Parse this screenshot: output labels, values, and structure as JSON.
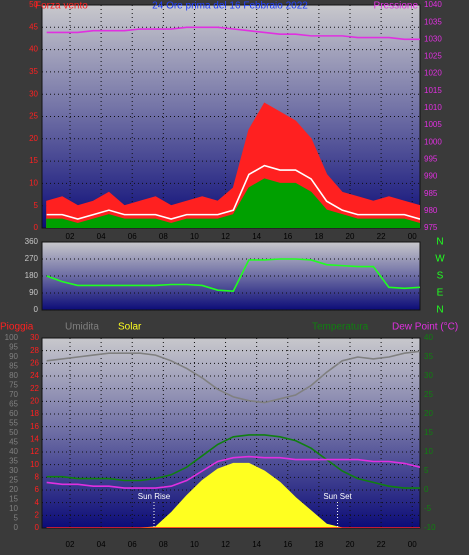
{
  "chart_data": [
    {
      "type": "line",
      "title": "24 Ore prima del 16 Febbraio 2022",
      "x": [
        0.5,
        1.5,
        2.5,
        3.5,
        4.5,
        5.5,
        6.5,
        7.5,
        8.5,
        9.5,
        10.5,
        11.5,
        12.5,
        13.5,
        14.5,
        15.5,
        16.5,
        17.5,
        18.5,
        19.5,
        20.5,
        21.5,
        22.5,
        23.5,
        24.5
      ],
      "xlim": [
        0.2,
        24.5
      ],
      "xticks": [
        {
          "value": 2,
          "label": "02"
        },
        {
          "value": 4,
          "label": "04"
        },
        {
          "value": 6,
          "label": "06"
        },
        {
          "value": 8,
          "label": "08"
        },
        10,
        12,
        14,
        16,
        18,
        20,
        22,
        {
          "value": 24,
          "label": "00"
        }
      ],
      "ylim": [
        0,
        50
      ],
      "yticks": [
        0,
        5,
        10,
        15,
        20,
        25,
        30,
        35,
        40,
        45,
        50
      ],
      "y2lim": [
        975,
        1040
      ],
      "y2ticks": [
        975,
        980,
        985,
        990,
        995,
        1000,
        1005,
        1010,
        1015,
        1020,
        1025,
        1030,
        1035,
        1040
      ],
      "grid": "y",
      "series": [
        {
          "name": "Forza vento",
          "color": "#ff2020",
          "fill": true,
          "values": [
            6,
            7,
            5,
            6,
            8,
            5,
            6,
            7,
            5,
            6,
            7,
            6,
            9,
            22,
            28,
            26,
            24,
            20,
            12,
            8,
            7,
            6,
            7,
            6,
            5
          ]
        },
        {
          "color": "#00a000",
          "fill": true,
          "values": [
            2,
            2,
            1,
            2,
            3,
            2,
            2,
            2,
            1,
            2,
            2,
            2,
            3,
            9,
            11,
            10,
            10,
            8,
            4,
            3,
            2,
            2,
            2,
            2,
            1
          ]
        },
        {
          "color": "#ffffff",
          "values": [
            3,
            3,
            2,
            3,
            4,
            3,
            3,
            3,
            2,
            3,
            3,
            3,
            4,
            12,
            14,
            13,
            13,
            11,
            6,
            4,
            3,
            3,
            3,
            3,
            2
          ]
        },
        {
          "name": "Pressione",
          "color": "#e030e0",
          "axis": "y2",
          "values": [
            1032,
            1032,
            1032,
            1032.5,
            1032.5,
            1032.5,
            1033,
            1033,
            1033,
            1033.5,
            1033.5,
            1033.5,
            1033,
            1032.5,
            1032,
            1031.5,
            1031.5,
            1031,
            1031,
            1031,
            1030.5,
            1030.5,
            1030.5,
            1030,
            1030
          ]
        }
      ]
    },
    {
      "type": "line",
      "x": [
        0.5,
        1.5,
        2.5,
        3.5,
        4.5,
        5.5,
        6.5,
        7.5,
        8.5,
        9.5,
        10.5,
        11.5,
        12.5,
        13.5,
        14.5,
        15.5,
        16.5,
        17.5,
        18.5,
        19.5,
        20.5,
        21.5,
        22.5,
        23.5,
        24.5
      ],
      "xlim": [
        0.2,
        24.5
      ],
      "ylim": [
        0,
        360
      ],
      "yticks": [
        0,
        90,
        180,
        270,
        360
      ],
      "y2lim": [
        0,
        360
      ],
      "y2ticks": [
        {
          "value": 360,
          "label": "N"
        },
        {
          "value": 270,
          "label": "W"
        },
        {
          "value": 180,
          "label": "S"
        },
        {
          "value": 90,
          "label": "E"
        },
        {
          "value": 0,
          "label": "N"
        }
      ],
      "grid": "y",
      "series": [
        {
          "color": "#20ff20",
          "values": [
            180,
            150,
            130,
            130,
            130,
            130,
            130,
            130,
            135,
            135,
            130,
            105,
            100,
            265,
            265,
            270,
            270,
            265,
            240,
            235,
            230,
            230,
            120,
            115,
            120
          ]
        }
      ]
    },
    {
      "type": "line",
      "x": [
        0.5,
        1.5,
        2.5,
        3.5,
        4.5,
        5.5,
        6.5,
        7.5,
        8.5,
        9.5,
        10.5,
        11.5,
        12.5,
        13.5,
        14.5,
        15.5,
        16.5,
        17.5,
        18.5,
        19.5,
        20.5,
        21.5,
        22.5,
        23.5,
        24.5
      ],
      "xlim": [
        0.2,
        24.5
      ],
      "xticks": [
        {
          "value": 2,
          "label": "02"
        },
        {
          "value": 4,
          "label": "04"
        },
        {
          "value": 6,
          "label": "06"
        },
        {
          "value": 8,
          "label": "08"
        },
        10,
        12,
        14,
        16,
        18,
        20,
        22,
        {
          "value": 24,
          "label": "00"
        }
      ],
      "ylim": [
        0,
        100
      ],
      "yticks": [
        0,
        5,
        10,
        15,
        20,
        25,
        30,
        35,
        40,
        45,
        50,
        55,
        60,
        65,
        70,
        75,
        80,
        85,
        90,
        95,
        100
      ],
      "y2lim": [
        -10,
        40
      ],
      "y2ticks": [
        -10,
        -5,
        0,
        5,
        10,
        15,
        20,
        25,
        30,
        35,
        40
      ],
      "y3lim": [
        0,
        30
      ],
      "y3ticks": [
        0,
        2,
        4,
        6,
        8,
        10,
        12,
        14,
        16,
        18,
        20,
        22,
        24,
        26,
        28,
        30
      ],
      "grid": "y3",
      "series": [
        {
          "name": "Pioggia",
          "color": "#ff2020",
          "axis": "y3",
          "values": [
            0,
            0,
            0,
            0,
            0,
            0,
            0,
            0,
            0,
            0,
            0,
            0,
            0,
            0,
            0,
            0,
            0,
            0,
            0,
            0,
            0,
            0,
            0,
            0,
            0
          ]
        },
        {
          "name": "Umidita",
          "color": "#808080",
          "values": [
            88,
            89,
            90,
            91,
            92,
            92,
            92,
            91,
            88,
            84,
            79,
            73,
            69,
            67,
            66,
            68,
            70,
            75,
            82,
            88,
            90,
            89,
            90,
            92,
            93
          ]
        },
        {
          "name": "Solar",
          "color": "#ffff20",
          "fill": true,
          "values": [
            0,
            0,
            0,
            0,
            0,
            0,
            0,
            0.5,
            8,
            17,
            25,
            31,
            34,
            34,
            30,
            24,
            16,
            9,
            2,
            0,
            0,
            0,
            0,
            0,
            0
          ]
        },
        {
          "name": "Temperatura",
          "color": "#108010",
          "axis": "y2",
          "values": [
            3.5,
            3.5,
            3,
            3,
            3,
            2.5,
            2.5,
            3,
            4,
            6,
            9,
            12,
            14,
            14.5,
            14.5,
            14,
            13,
            11,
            8,
            5,
            3,
            2,
            1,
            0.5,
            0.5
          ]
        },
        {
          "name": "Dew Point (°C)",
          "color": "#e030e0",
          "axis": "y2",
          "values": [
            2,
            1.5,
            1.5,
            1,
            1,
            0.5,
            0.5,
            0.5,
            1,
            2.5,
            5,
            7.5,
            8.5,
            8.8,
            8.5,
            8.5,
            8,
            8,
            8,
            8,
            8,
            7.5,
            7.5,
            7,
            6
          ]
        }
      ],
      "annotations": [
        {
          "text": "Sun Rise",
          "x": 7.4
        },
        {
          "text": "Sun Set",
          "x": 19.2
        }
      ]
    }
  ]
}
